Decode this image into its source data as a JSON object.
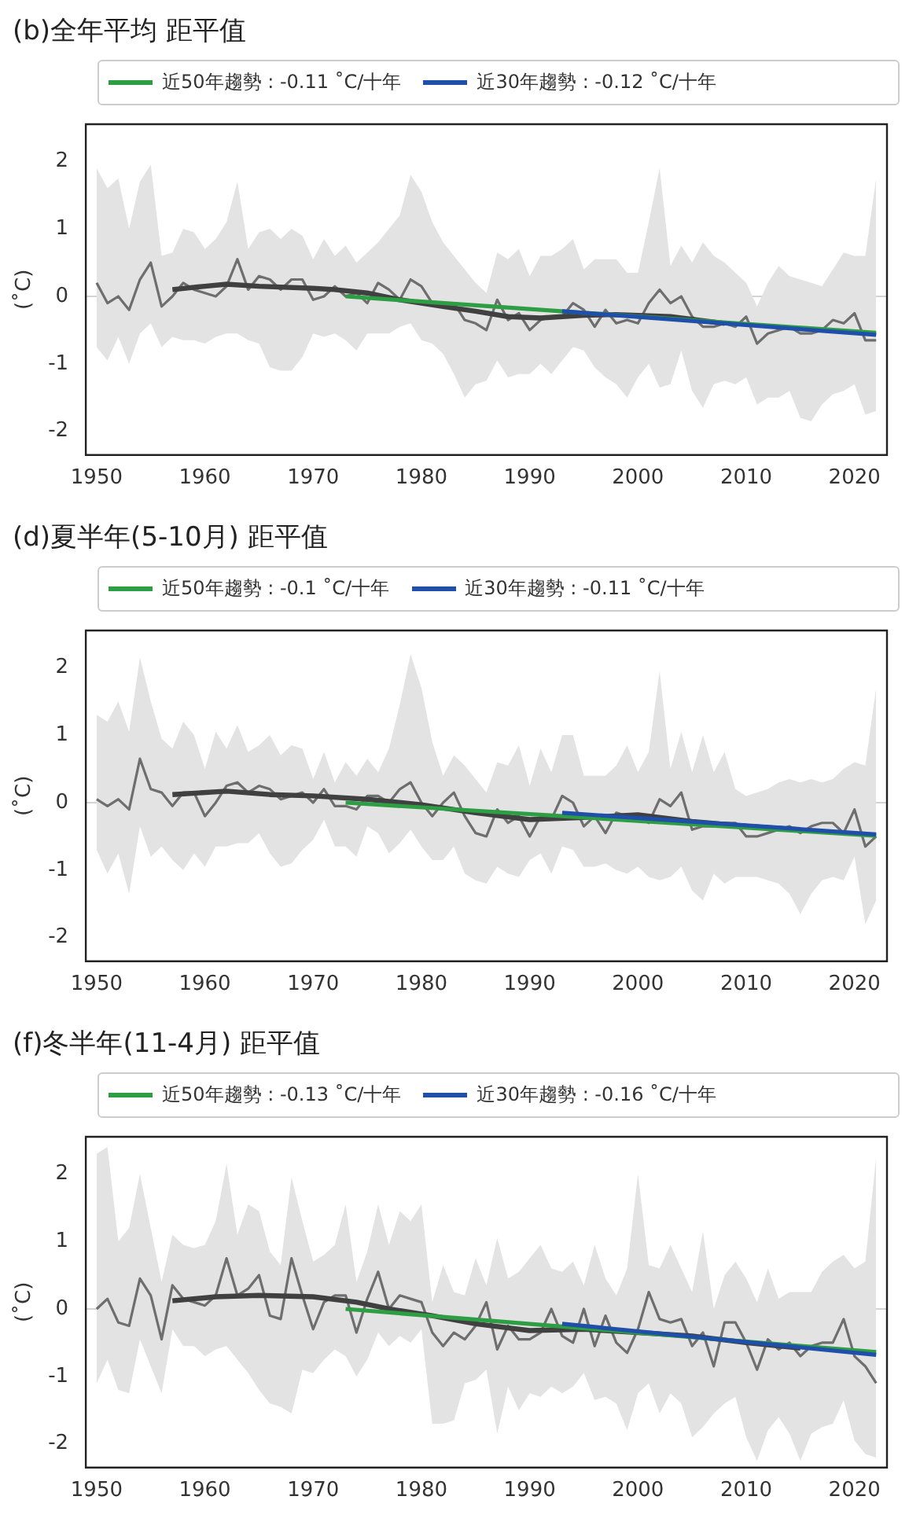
{
  "chart_data": [
    {
      "type": "line",
      "title": "(b)全年平均 距平值",
      "ylabel": "(˚C)",
      "legend": "top",
      "grid": false,
      "x": [
        1950,
        1951,
        1952,
        1953,
        1954,
        1955,
        1956,
        1957,
        1958,
        1959,
        1960,
        1961,
        1962,
        1963,
        1964,
        1965,
        1966,
        1967,
        1968,
        1969,
        1970,
        1971,
        1972,
        1973,
        1974,
        1975,
        1976,
        1977,
        1978,
        1979,
        1980,
        1981,
        1982,
        1983,
        1984,
        1985,
        1986,
        1987,
        1988,
        1989,
        1990,
        1991,
        1992,
        1993,
        1994,
        1995,
        1996,
        1997,
        1998,
        1999,
        2000,
        2001,
        2002,
        2003,
        2004,
        2005,
        2006,
        2007,
        2008,
        2009,
        2010,
        2011,
        2012,
        2013,
        2014,
        2015,
        2016,
        2017,
        2018,
        2019,
        2020,
        2021,
        2022
      ],
      "xlim": [
        1949,
        2023
      ],
      "xticks": [
        1950,
        1960,
        1970,
        1980,
        1990,
        2000,
        2010,
        2020
      ],
      "ylim": [
        -2.35,
        2.55
      ],
      "yticks": [
        -2,
        -1,
        0,
        1,
        2
      ],
      "ref_lines": [
        {
          "axis": "y",
          "value": 0,
          "color": "#d4d4d4"
        }
      ],
      "series": [
        {
          "color": "#6e6e6e",
          "values": [
            0.2,
            -0.1,
            0.0,
            -0.2,
            0.25,
            0.5,
            -0.15,
            0.0,
            0.2,
            0.1,
            0.05,
            0.0,
            0.15,
            0.55,
            0.1,
            0.3,
            0.25,
            0.1,
            0.25,
            0.25,
            -0.05,
            0.0,
            0.15,
            0.0,
            0.05,
            -0.1,
            0.2,
            0.1,
            -0.05,
            0.25,
            0.15,
            -0.1,
            -0.1,
            -0.1,
            -0.35,
            -0.4,
            -0.5,
            -0.05,
            -0.35,
            -0.25,
            -0.5,
            -0.35,
            -0.3,
            -0.3,
            -0.1,
            -0.2,
            -0.45,
            -0.2,
            -0.4,
            -0.35,
            -0.4,
            -0.1,
            0.1,
            -0.1,
            0.0,
            -0.3,
            -0.45,
            -0.45,
            -0.4,
            -0.45,
            -0.3,
            -0.7,
            -0.55,
            -0.5,
            -0.45,
            -0.55,
            -0.55,
            -0.5,
            -0.35,
            -0.4,
            -0.25,
            -0.65,
            -0.65
          ],
          "upper": [
            1.9,
            1.6,
            1.75,
            1.0,
            1.7,
            1.95,
            0.6,
            0.65,
            1.0,
            0.95,
            0.7,
            0.85,
            1.1,
            1.7,
            0.7,
            0.95,
            1.0,
            0.85,
            1.0,
            0.9,
            0.55,
            0.85,
            0.6,
            0.75,
            0.5,
            0.65,
            0.8,
            1.0,
            1.2,
            1.8,
            1.55,
            1.1,
            0.8,
            0.6,
            0.4,
            0.2,
            0.05,
            0.65,
            0.55,
            0.7,
            0.3,
            0.6,
            0.6,
            0.7,
            0.85,
            0.4,
            0.55,
            0.55,
            0.55,
            0.35,
            0.35,
            1.1,
            1.9,
            0.45,
            0.75,
            0.5,
            0.8,
            0.6,
            0.5,
            0.35,
            0.2,
            -0.15,
            0.2,
            0.45,
            0.3,
            0.25,
            0.2,
            0.15,
            0.4,
            0.65,
            0.6,
            0.6,
            1.75
          ],
          "lower": [
            -0.75,
            -0.95,
            -0.6,
            -1.0,
            -0.55,
            -0.4,
            -0.75,
            -0.6,
            -0.65,
            -0.65,
            -0.7,
            -0.6,
            -0.55,
            -0.55,
            -0.65,
            -0.7,
            -1.05,
            -1.1,
            -1.1,
            -0.9,
            -0.55,
            -0.6,
            -0.55,
            -0.65,
            -0.8,
            -0.55,
            -0.55,
            -0.55,
            -0.45,
            -0.4,
            -0.65,
            -0.7,
            -0.85,
            -1.15,
            -1.5,
            -1.3,
            -1.25,
            -0.95,
            -1.2,
            -1.15,
            -1.15,
            -1.0,
            -1.15,
            -0.95,
            -0.75,
            -0.8,
            -1.05,
            -1.2,
            -1.3,
            -1.5,
            -1.2,
            -1.0,
            -1.35,
            -1.3,
            -0.8,
            -1.4,
            -1.65,
            -1.3,
            -1.25,
            -1.3,
            -1.2,
            -1.6,
            -1.5,
            -1.5,
            -1.4,
            -1.8,
            -1.85,
            -1.6,
            -1.45,
            -1.4,
            -1.3,
            -1.75,
            -1.7
          ]
        },
        {
          "color": "#404040",
          "x": [
            1957,
            1960,
            1962,
            1965,
            1970,
            1972,
            1975,
            1978,
            1982,
            1985,
            1988,
            1991,
            1995,
            1998,
            2003,
            2008
          ],
          "values": [
            0.1,
            0.15,
            0.18,
            0.15,
            0.12,
            0.1,
            0.05,
            -0.05,
            -0.15,
            -0.22,
            -0.3,
            -0.32,
            -0.28,
            -0.27,
            -0.3,
            -0.4
          ]
        },
        {
          "name": "近50年趨勢 : -0.11 ˚C/十年",
          "color": "#2e9e44",
          "x": [
            1973,
            2022
          ],
          "values": [
            0.0,
            -0.54
          ]
        },
        {
          "name": "近30年趨勢 : -0.12 ˚C/十年",
          "color": "#1f4fa8",
          "x": [
            1993,
            2022
          ],
          "values": [
            -0.22,
            -0.57
          ]
        }
      ]
    },
    {
      "type": "line",
      "title": "(d)夏半年(5-10月) 距平值",
      "ylabel": "(˚C)",
      "legend": "top",
      "grid": false,
      "x": [
        1950,
        1951,
        1952,
        1953,
        1954,
        1955,
        1956,
        1957,
        1958,
        1959,
        1960,
        1961,
        1962,
        1963,
        1964,
        1965,
        1966,
        1967,
        1968,
        1969,
        1970,
        1971,
        1972,
        1973,
        1974,
        1975,
        1976,
        1977,
        1978,
        1979,
        1980,
        1981,
        1982,
        1983,
        1984,
        1985,
        1986,
        1987,
        1988,
        1989,
        1990,
        1991,
        1992,
        1993,
        1994,
        1995,
        1996,
        1997,
        1998,
        1999,
        2000,
        2001,
        2002,
        2003,
        2004,
        2005,
        2006,
        2007,
        2008,
        2009,
        2010,
        2011,
        2012,
        2013,
        2014,
        2015,
        2016,
        2017,
        2018,
        2019,
        2020,
        2021,
        2022
      ],
      "xlim": [
        1949,
        2023
      ],
      "xticks": [
        1950,
        1960,
        1970,
        1980,
        1990,
        2000,
        2010,
        2020
      ],
      "ylim": [
        -2.35,
        2.55
      ],
      "yticks": [
        -2,
        -1,
        0,
        1,
        2
      ],
      "ref_lines": [
        {
          "axis": "y",
          "value": 0,
          "color": "#d4d4d4"
        }
      ],
      "series": [
        {
          "color": "#6e6e6e",
          "values": [
            0.05,
            -0.05,
            0.05,
            -0.1,
            0.65,
            0.2,
            0.15,
            -0.05,
            0.15,
            0.15,
            -0.2,
            0.0,
            0.25,
            0.3,
            0.15,
            0.25,
            0.2,
            0.05,
            0.1,
            0.15,
            0.0,
            0.2,
            -0.05,
            -0.05,
            -0.1,
            0.1,
            0.1,
            0.0,
            0.2,
            0.3,
            0.0,
            -0.2,
            0.0,
            0.15,
            -0.2,
            -0.45,
            -0.5,
            -0.1,
            -0.3,
            -0.2,
            -0.5,
            -0.2,
            -0.25,
            0.1,
            0.0,
            -0.35,
            -0.2,
            -0.45,
            -0.15,
            -0.2,
            -0.2,
            -0.3,
            0.05,
            -0.05,
            0.15,
            -0.4,
            -0.35,
            -0.35,
            -0.3,
            -0.3,
            -0.5,
            -0.5,
            -0.45,
            -0.4,
            -0.35,
            -0.45,
            -0.35,
            -0.3,
            -0.3,
            -0.45,
            -0.1,
            -0.65,
            -0.5
          ],
          "upper": [
            1.3,
            1.2,
            1.5,
            1.05,
            2.15,
            1.5,
            0.95,
            0.8,
            1.2,
            1.0,
            0.5,
            1.05,
            0.8,
            1.15,
            0.75,
            0.85,
            1.0,
            0.7,
            0.85,
            0.8,
            0.35,
            0.75,
            0.3,
            0.6,
            0.4,
            0.65,
            0.45,
            0.8,
            1.45,
            2.2,
            1.7,
            0.9,
            0.4,
            0.7,
            0.55,
            0.35,
            0.15,
            0.6,
            0.55,
            0.85,
            0.25,
            0.8,
            0.45,
            1.0,
            1.0,
            0.4,
            0.4,
            0.4,
            0.55,
            0.85,
            0.45,
            0.75,
            1.95,
            0.5,
            1.05,
            0.45,
            1.0,
            0.45,
            0.75,
            0.2,
            0.1,
            0.15,
            0.2,
            0.3,
            0.35,
            0.3,
            0.35,
            0.3,
            0.35,
            0.5,
            0.6,
            0.55,
            1.7
          ],
          "lower": [
            -0.7,
            -1.05,
            -0.75,
            -1.35,
            -0.35,
            -0.8,
            -0.65,
            -0.85,
            -1.0,
            -0.75,
            -0.95,
            -0.65,
            -0.65,
            -0.6,
            -0.6,
            -0.45,
            -0.75,
            -0.95,
            -0.9,
            -0.7,
            -0.55,
            -0.25,
            -0.65,
            -0.65,
            -0.8,
            -0.35,
            -0.45,
            -0.75,
            -0.6,
            -0.4,
            -0.65,
            -0.85,
            -0.85,
            -0.65,
            -1.05,
            -1.15,
            -1.2,
            -0.95,
            -1.05,
            -1.1,
            -0.85,
            -0.75,
            -1.05,
            -0.65,
            -0.7,
            -0.95,
            -0.95,
            -0.9,
            -1.0,
            -1.05,
            -0.95,
            -1.1,
            -1.15,
            -1.1,
            -0.95,
            -1.3,
            -1.45,
            -1.05,
            -1.2,
            -1.1,
            -1.1,
            -1.1,
            -1.15,
            -1.2,
            -1.35,
            -1.65,
            -1.35,
            -1.15,
            -1.1,
            -1.15,
            -0.8,
            -1.8,
            -1.45
          ]
        },
        {
          "color": "#404040",
          "x": [
            1957,
            1962,
            1966,
            1970,
            1975,
            1980,
            1985,
            1990,
            1995,
            2000,
            2005,
            2010,
            2015
          ],
          "values": [
            0.12,
            0.17,
            0.12,
            0.1,
            0.05,
            -0.03,
            -0.15,
            -0.25,
            -0.22,
            -0.18,
            -0.28,
            -0.35,
            -0.4
          ]
        },
        {
          "name": "近50年趨勢 : -0.1 ˚C/十年",
          "color": "#2e9e44",
          "x": [
            1973,
            2022
          ],
          "values": [
            0.0,
            -0.49
          ]
        },
        {
          "name": "近30年趨勢 : -0.11 ˚C/十年",
          "color": "#1f4fa8",
          "x": [
            1993,
            2022
          ],
          "values": [
            -0.15,
            -0.47
          ]
        }
      ]
    },
    {
      "type": "line",
      "title": "(f)冬半年(11-4月) 距平值",
      "ylabel": "(˚C)",
      "legend": "top",
      "grid": false,
      "x": [
        1950,
        1951,
        1952,
        1953,
        1954,
        1955,
        1956,
        1957,
        1958,
        1959,
        1960,
        1961,
        1962,
        1963,
        1964,
        1965,
        1966,
        1967,
        1968,
        1969,
        1970,
        1971,
        1972,
        1973,
        1974,
        1975,
        1976,
        1977,
        1978,
        1979,
        1980,
        1981,
        1982,
        1983,
        1984,
        1985,
        1986,
        1987,
        1988,
        1989,
        1990,
        1991,
        1992,
        1993,
        1994,
        1995,
        1996,
        1997,
        1998,
        1999,
        2000,
        2001,
        2002,
        2003,
        2004,
        2005,
        2006,
        2007,
        2008,
        2009,
        2010,
        2011,
        2012,
        2013,
        2014,
        2015,
        2016,
        2017,
        2018,
        2019,
        2020,
        2021,
        2022
      ],
      "xlim": [
        1949,
        2023
      ],
      "xticks": [
        1950,
        1960,
        1970,
        1980,
        1990,
        2000,
        2010,
        2020
      ],
      "ylim": [
        -2.35,
        2.55
      ],
      "yticks": [
        -2,
        -1,
        0,
        1,
        2
      ],
      "ref_lines": [
        {
          "axis": "y",
          "value": 0,
          "color": "#d4d4d4"
        }
      ],
      "series": [
        {
          "color": "#6e6e6e",
          "values": [
            0.0,
            0.15,
            -0.2,
            -0.25,
            0.45,
            0.2,
            -0.45,
            0.35,
            0.15,
            0.1,
            0.05,
            0.2,
            0.75,
            0.2,
            0.3,
            0.5,
            -0.1,
            -0.15,
            0.75,
            0.2,
            -0.3,
            0.1,
            0.2,
            0.2,
            -0.35,
            0.15,
            0.55,
            0.0,
            0.2,
            0.15,
            0.1,
            -0.35,
            -0.55,
            -0.35,
            -0.45,
            -0.25,
            0.1,
            -0.6,
            -0.25,
            -0.45,
            -0.45,
            -0.35,
            0.0,
            -0.4,
            -0.5,
            0.0,
            -0.55,
            -0.1,
            -0.5,
            -0.65,
            -0.3,
            0.25,
            -0.15,
            -0.2,
            -0.15,
            -0.55,
            -0.35,
            -0.85,
            -0.2,
            -0.2,
            -0.5,
            -0.9,
            -0.45,
            -0.6,
            -0.5,
            -0.7,
            -0.55,
            -0.5,
            -0.5,
            -0.15,
            -0.7,
            -0.85,
            -1.1
          ],
          "upper": [
            2.3,
            2.4,
            1.0,
            1.2,
            2.0,
            1.2,
            0.4,
            1.1,
            0.95,
            0.9,
            0.95,
            1.3,
            2.15,
            1.1,
            1.55,
            1.45,
            0.85,
            0.65,
            1.95,
            1.3,
            0.7,
            0.8,
            0.95,
            1.55,
            0.4,
            0.85,
            1.55,
            0.95,
            1.45,
            1.3,
            1.55,
            0.1,
            0.65,
            0.25,
            0.2,
            0.75,
            0.35,
            1.05,
            0.45,
            0.55,
            0.75,
            0.95,
            0.6,
            0.55,
            0.7,
            0.35,
            0.95,
            0.45,
            0.2,
            0.6,
            2.0,
            0.65,
            0.6,
            0.95,
            0.6,
            0.25,
            1.15,
            0.0,
            0.5,
            0.7,
            0.45,
            0.1,
            0.6,
            0.15,
            0.25,
            0.25,
            0.25,
            0.55,
            0.7,
            0.8,
            0.6,
            0.7,
            2.25
          ],
          "lower": [
            -1.1,
            -0.75,
            -1.2,
            -1.25,
            -0.45,
            -0.85,
            -1.25,
            -0.3,
            -0.55,
            -0.55,
            -0.7,
            -0.6,
            -0.55,
            -0.75,
            -0.95,
            -1.2,
            -1.4,
            -1.45,
            -1.55,
            -0.9,
            -0.95,
            -0.75,
            -0.6,
            -0.7,
            -1.0,
            -0.75,
            -0.35,
            -0.55,
            -0.4,
            -0.5,
            -0.3,
            -1.7,
            -1.7,
            -1.65,
            -1.1,
            -1.05,
            -0.9,
            -1.85,
            -1.15,
            -1.5,
            -1.25,
            -1.3,
            -1.15,
            -1.25,
            -1.15,
            -0.95,
            -1.35,
            -1.3,
            -1.4,
            -1.8,
            -1.25,
            -1.1,
            -1.55,
            -1.25,
            -1.4,
            -1.9,
            -1.75,
            -1.55,
            -1.4,
            -1.3,
            -1.9,
            -2.25,
            -1.8,
            -1.6,
            -1.85,
            -2.25,
            -1.85,
            -1.75,
            -1.7,
            -1.35,
            -1.95,
            -2.15,
            -2.2
          ]
        },
        {
          "color": "#404040",
          "x": [
            1957,
            1961,
            1965,
            1970,
            1974,
            1977,
            1981,
            1985,
            1990,
            1995,
            2000,
            2005,
            2010,
            2015
          ],
          "values": [
            0.12,
            0.18,
            0.2,
            0.18,
            0.1,
            0.0,
            -0.1,
            -0.22,
            -0.32,
            -0.3,
            -0.35,
            -0.4,
            -0.5,
            -0.58
          ]
        },
        {
          "name": "近50年趨勢 : -0.13 ˚C/十年",
          "color": "#2e9e44",
          "x": [
            1973,
            2022
          ],
          "values": [
            0.0,
            -0.64
          ]
        },
        {
          "name": "近30年趨勢 : -0.16 ˚C/十年",
          "color": "#1f4fa8",
          "x": [
            1993,
            2022
          ],
          "values": [
            -0.22,
            -0.68
          ]
        }
      ]
    }
  ]
}
